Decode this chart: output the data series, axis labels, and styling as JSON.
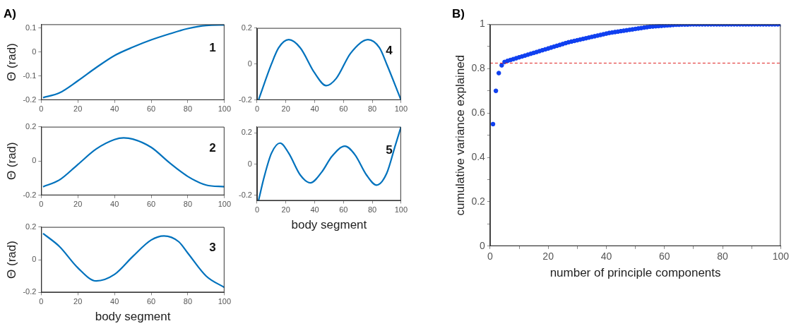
{
  "chart_data": [
    {
      "type": "line",
      "title": "A)",
      "ylabel": "Θ (rad)",
      "annotations": [
        "1"
      ],
      "color": "#0072bd",
      "marker": "none",
      "grid": false,
      "x": [
        1,
        10,
        20,
        30,
        40,
        50,
        60,
        70,
        80,
        90,
        100
      ],
      "values": [
        -0.19,
        -0.17,
        -0.12,
        -0.065,
        -0.015,
        0.02,
        0.05,
        0.075,
        0.097,
        0.11,
        0.112
      ],
      "xlim": [
        0,
        100
      ],
      "xticks": [
        0,
        20,
        40,
        60,
        80,
        100
      ],
      "ylim": [
        -0.2,
        0.115
      ],
      "yticks": [
        -0.2,
        -0.1,
        0,
        0.1
      ]
    },
    {
      "type": "line",
      "ylabel": "Θ (rad)",
      "annotations": [
        "2"
      ],
      "color": "#0072bd",
      "marker": "none",
      "grid": false,
      "x": [
        1,
        10,
        20,
        30,
        40,
        45,
        50,
        60,
        70,
        80,
        90,
        100
      ],
      "values": [
        -0.15,
        -0.11,
        -0.02,
        0.07,
        0.125,
        0.135,
        0.128,
        0.08,
        -0.01,
        -0.09,
        -0.14,
        -0.15
      ],
      "xlim": [
        0,
        100
      ],
      "xticks": [
        0,
        20,
        40,
        60,
        80,
        100
      ],
      "ylim": [
        -0.2,
        0.2
      ],
      "yticks": [
        -0.2,
        0,
        0.2
      ]
    },
    {
      "type": "line",
      "ylabel": "Θ (rad)",
      "xlabel": "body segment",
      "annotations": [
        "3"
      ],
      "color": "#0072bd",
      "marker": "none",
      "grid": false,
      "x": [
        1,
        10,
        20,
        30,
        40,
        50,
        60,
        67,
        75,
        80,
        90,
        100
      ],
      "values": [
        0.16,
        0.08,
        -0.05,
        -0.13,
        -0.09,
        0.02,
        0.12,
        0.145,
        0.11,
        0.04,
        -0.1,
        -0.17
      ],
      "xlim": [
        0,
        100
      ],
      "xticks": [
        0,
        20,
        40,
        60,
        80,
        100
      ],
      "ylim": [
        -0.2,
        0.2
      ],
      "yticks": [
        -0.2,
        0,
        0.2
      ]
    },
    {
      "type": "line",
      "annotations": [
        "4"
      ],
      "color": "#0072bd",
      "marker": "none",
      "grid": false,
      "x": [
        1,
        10,
        15,
        22,
        30,
        40,
        48,
        55,
        65,
        77,
        85,
        90,
        100
      ],
      "values": [
        -0.2,
        0.0,
        0.09,
        0.135,
        0.09,
        -0.05,
        -0.12,
        -0.08,
        0.06,
        0.135,
        0.09,
        0.0,
        -0.2
      ],
      "xlim": [
        0,
        100
      ],
      "xticks": [
        0,
        20,
        40,
        60,
        80,
        100
      ],
      "ylim": [
        -0.2,
        0.2
      ],
      "yticks": [
        -0.2,
        0,
        0.2
      ]
    },
    {
      "type": "line",
      "xlabel": "body segment",
      "annotations": [
        "5"
      ],
      "color": "#0072bd",
      "marker": "none",
      "grid": false,
      "x": [
        1,
        5,
        10,
        16,
        22,
        30,
        37,
        45,
        52,
        61,
        68,
        76,
        83,
        90,
        96,
        100
      ],
      "values": [
        -0.235,
        -0.08,
        0.07,
        0.135,
        0.07,
        -0.07,
        -0.12,
        -0.05,
        0.05,
        0.115,
        0.06,
        -0.07,
        -0.135,
        -0.06,
        0.12,
        0.24
      ],
      "xlim": [
        0,
        100
      ],
      "xticks": [
        0,
        20,
        40,
        60,
        80,
        100
      ],
      "ylim": [
        -0.235,
        0.24
      ],
      "yticks": [
        -0.2,
        0,
        0.2
      ]
    },
    {
      "type": "scatter",
      "title": "B)",
      "xlabel": "number of principle components",
      "ylabel": "cumulative variance explained",
      "color": "#1040f0",
      "marker": "circle",
      "grid": false,
      "x": [
        1,
        2,
        3,
        4,
        5,
        6,
        7,
        8,
        9,
        10,
        11,
        12,
        13,
        14,
        15,
        16,
        17,
        18,
        19,
        20,
        21,
        22,
        23,
        24,
        25,
        26,
        27,
        28,
        29,
        30,
        31,
        32,
        33,
        34,
        35,
        36,
        37,
        38,
        39,
        40,
        41,
        42,
        43,
        44,
        45,
        46,
        47,
        48,
        49,
        50,
        51,
        52,
        53,
        54,
        55,
        56,
        57,
        58,
        59,
        60,
        61,
        62,
        63,
        64,
        65,
        66,
        67,
        68,
        69,
        70,
        71,
        72,
        73,
        74,
        75,
        76,
        77,
        78,
        79,
        80,
        81,
        82,
        83,
        84,
        85,
        86,
        87,
        88,
        89,
        90,
        91,
        92,
        93,
        94,
        95,
        96,
        97,
        98,
        99,
        100
      ],
      "values": [
        0.55,
        0.7,
        0.78,
        0.815,
        0.83,
        0.835,
        0.839,
        0.843,
        0.847,
        0.851,
        0.855,
        0.859,
        0.863,
        0.867,
        0.871,
        0.875,
        0.879,
        0.883,
        0.887,
        0.891,
        0.895,
        0.899,
        0.903,
        0.907,
        0.911,
        0.915,
        0.919,
        0.922,
        0.925,
        0.928,
        0.931,
        0.934,
        0.937,
        0.94,
        0.943,
        0.946,
        0.949,
        0.952,
        0.955,
        0.958,
        0.961,
        0.963,
        0.965,
        0.967,
        0.969,
        0.971,
        0.973,
        0.975,
        0.977,
        0.979,
        0.981,
        0.983,
        0.985,
        0.987,
        0.989,
        0.99,
        0.991,
        0.992,
        0.993,
        0.994,
        0.995,
        0.996,
        0.997,
        0.998,
        0.998,
        0.999,
        0.999,
        0.999,
        1,
        1,
        1,
        1,
        1,
        1,
        1,
        1,
        1,
        1,
        1,
        1,
        1,
        1,
        1,
        1,
        1,
        1,
        1,
        1,
        1,
        1,
        1,
        1,
        1,
        1,
        1,
        1,
        1,
        1,
        1,
        1
      ],
      "xlim": [
        0,
        100
      ],
      "xticks": [
        0,
        {
          "value": 10,
          "label": null
        },
        20,
        {
          "value": 30,
          "label": null
        },
        40,
        {
          "value": 50,
          "label": null
        },
        60,
        {
          "value": 70,
          "label": null
        },
        80,
        {
          "value": 90,
          "label": null
        },
        100
      ],
      "ylim": [
        0,
        1
      ],
      "yticks": [
        0,
        {
          "value": 0.1,
          "label": null
        },
        0.2,
        {
          "value": 0.3,
          "label": null
        },
        0.4,
        {
          "value": 0.5,
          "label": null
        },
        0.6,
        {
          "value": 0.7,
          "label": null
        },
        0.8,
        {
          "value": 0.9,
          "label": null
        },
        1
      ],
      "ref_lines": [
        {
          "axis": "y",
          "value": 0.825,
          "color": "#e02020",
          "line_style": "dashed"
        }
      ]
    }
  ]
}
